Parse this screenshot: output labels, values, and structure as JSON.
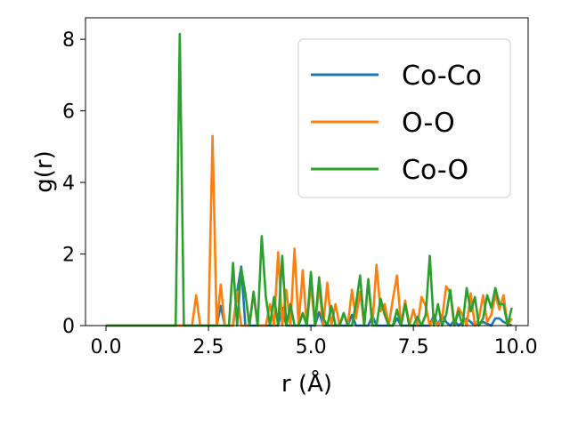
{
  "chart_data": {
    "type": "line",
    "title": "",
    "xlabel": "r (Å)",
    "ylabel": "g(r)",
    "xlim": [
      -0.5,
      10.3
    ],
    "ylim": [
      0,
      8.6
    ],
    "xticks": [
      0.0,
      2.5,
      5.0,
      7.5,
      10.0
    ],
    "xtick_labels": [
      "0.0",
      "2.5",
      "5.0",
      "7.5",
      "10.0"
    ],
    "yticks": [
      0,
      2,
      4,
      6,
      8
    ],
    "ytick_labels": [
      "0",
      "2",
      "4",
      "6",
      "8"
    ],
    "grid": false,
    "legend_position": "top-right",
    "series": [
      {
        "name": "Co-Co",
        "color": "#1f77b4",
        "x": [
          0.0,
          2.7,
          2.8,
          2.9,
          3.1,
          3.2,
          3.3,
          3.4,
          3.5,
          4.2,
          4.3,
          4.4,
          5.1,
          5.2,
          5.3,
          5.9,
          6.0,
          6.1,
          6.4,
          6.5,
          6.6,
          7.0,
          7.1,
          7.2,
          7.9,
          8.0,
          8.1,
          8.2,
          8.3,
          8.4,
          8.5,
          8.6,
          8.7,
          8.8,
          8.9,
          9.0,
          9.2,
          9.4,
          9.5,
          9.6,
          9.7,
          9.9
        ],
        "y": [
          0.0,
          0.0,
          0.55,
          0.0,
          0.0,
          0.95,
          1.65,
          0.0,
          0.0,
          0.0,
          0.5,
          0.0,
          0.0,
          0.38,
          0.0,
          0.0,
          0.3,
          0.0,
          0.0,
          0.28,
          0.0,
          0.0,
          0.2,
          0.0,
          0.0,
          0.3,
          0.0,
          0.3,
          0.1,
          0.0,
          0.15,
          0.0,
          0.1,
          0.2,
          0.1,
          0.0,
          0.1,
          0.0,
          0.2,
          0.2,
          0.1,
          0.0
        ]
      },
      {
        "name": "O-O",
        "color": "#ff7f0e",
        "x": [
          0.0,
          2.1,
          2.2,
          2.3,
          2.5,
          2.6,
          2.7,
          2.8,
          2.9,
          3.1,
          3.2,
          3.3,
          3.5,
          3.6,
          3.7,
          3.9,
          4.0,
          4.1,
          4.2,
          4.3,
          4.4,
          4.5,
          4.6,
          4.7,
          4.8,
          4.9,
          5.0,
          5.1,
          5.2,
          5.3,
          5.4,
          5.5,
          5.6,
          5.7,
          5.8,
          5.9,
          6.0,
          6.1,
          6.2,
          6.3,
          6.4,
          6.5,
          6.6,
          6.7,
          6.8,
          6.9,
          7.0,
          7.1,
          7.2,
          7.3,
          7.4,
          7.5,
          7.6,
          7.7,
          7.8,
          7.9,
          8.0,
          8.1,
          8.2,
          8.3,
          8.4,
          8.5,
          8.6,
          8.7,
          8.8,
          8.9,
          9.0,
          9.1,
          9.2,
          9.3,
          9.4,
          9.5,
          9.6,
          9.7,
          9.8,
          9.9
        ],
        "y": [
          0.0,
          0.0,
          0.85,
          0.0,
          0.0,
          5.3,
          0.0,
          1.15,
          0.0,
          0.0,
          0.95,
          0.0,
          0.0,
          0.9,
          0.0,
          0.0,
          0.6,
          0.0,
          2.05,
          0.0,
          1.0,
          0.0,
          2.15,
          0.0,
          1.55,
          0.0,
          1.15,
          0.0,
          1.1,
          0.0,
          1.2,
          0.0,
          0.6,
          0.0,
          0.35,
          0.0,
          1.0,
          0.2,
          0.95,
          0.0,
          1.25,
          0.0,
          1.7,
          0.4,
          0.6,
          0.0,
          0.75,
          1.4,
          0.0,
          0.7,
          0.0,
          0.45,
          0.0,
          0.8,
          0.55,
          0.0,
          0.2,
          0.0,
          0.2,
          1.1,
          0.9,
          0.0,
          0.5,
          0.3,
          0.0,
          0.9,
          0.0,
          0.2,
          0.85,
          0.1,
          0.3,
          0.85,
          0.45,
          0.85,
          0.0,
          0.2
        ]
      },
      {
        "name": "Co-O",
        "color": "#2ca02c",
        "x": [
          0.0,
          1.7,
          1.8,
          1.9,
          3.0,
          3.1,
          3.2,
          3.3,
          3.4,
          3.5,
          3.6,
          3.7,
          3.8,
          3.9,
          4.0,
          4.1,
          4.2,
          4.3,
          4.4,
          4.5,
          4.6,
          4.7,
          4.8,
          4.9,
          5.0,
          5.1,
          5.2,
          5.3,
          5.4,
          5.5,
          5.6,
          5.7,
          5.8,
          5.9,
          6.0,
          6.1,
          6.2,
          6.3,
          6.4,
          6.5,
          6.6,
          6.7,
          6.8,
          6.9,
          7.0,
          7.1,
          7.2,
          7.3,
          7.4,
          7.5,
          7.6,
          7.7,
          7.8,
          7.9,
          8.0,
          8.1,
          8.2,
          8.3,
          8.4,
          8.5,
          8.6,
          8.7,
          8.8,
          8.9,
          9.0,
          9.1,
          9.2,
          9.3,
          9.4,
          9.5,
          9.6,
          9.7,
          9.8,
          9.9
        ],
        "y": [
          0.0,
          0.0,
          8.15,
          0.0,
          0.0,
          1.75,
          0.0,
          1.6,
          0.9,
          0.0,
          0.95,
          0.0,
          2.5,
          0.8,
          0.0,
          0.8,
          0.0,
          1.95,
          0.0,
          0.6,
          0.0,
          0.0,
          0.35,
          0.0,
          1.5,
          0.0,
          1.35,
          0.2,
          0.0,
          0.55,
          0.0,
          0.0,
          0.35,
          0.0,
          0.0,
          0.6,
          1.4,
          0.0,
          1.3,
          0.0,
          0.0,
          0.75,
          0.3,
          0.0,
          0.0,
          0.45,
          0.0,
          0.6,
          0.0,
          0.0,
          0.25,
          0.0,
          0.3,
          1.95,
          0.0,
          0.6,
          0.0,
          0.3,
          1.0,
          0.0,
          0.4,
          0.0,
          1.05,
          0.4,
          0.8,
          0.0,
          0.2,
          0.85,
          0.5,
          1.05,
          0.6,
          0.6,
          0.0,
          0.5
        ]
      }
    ]
  }
}
